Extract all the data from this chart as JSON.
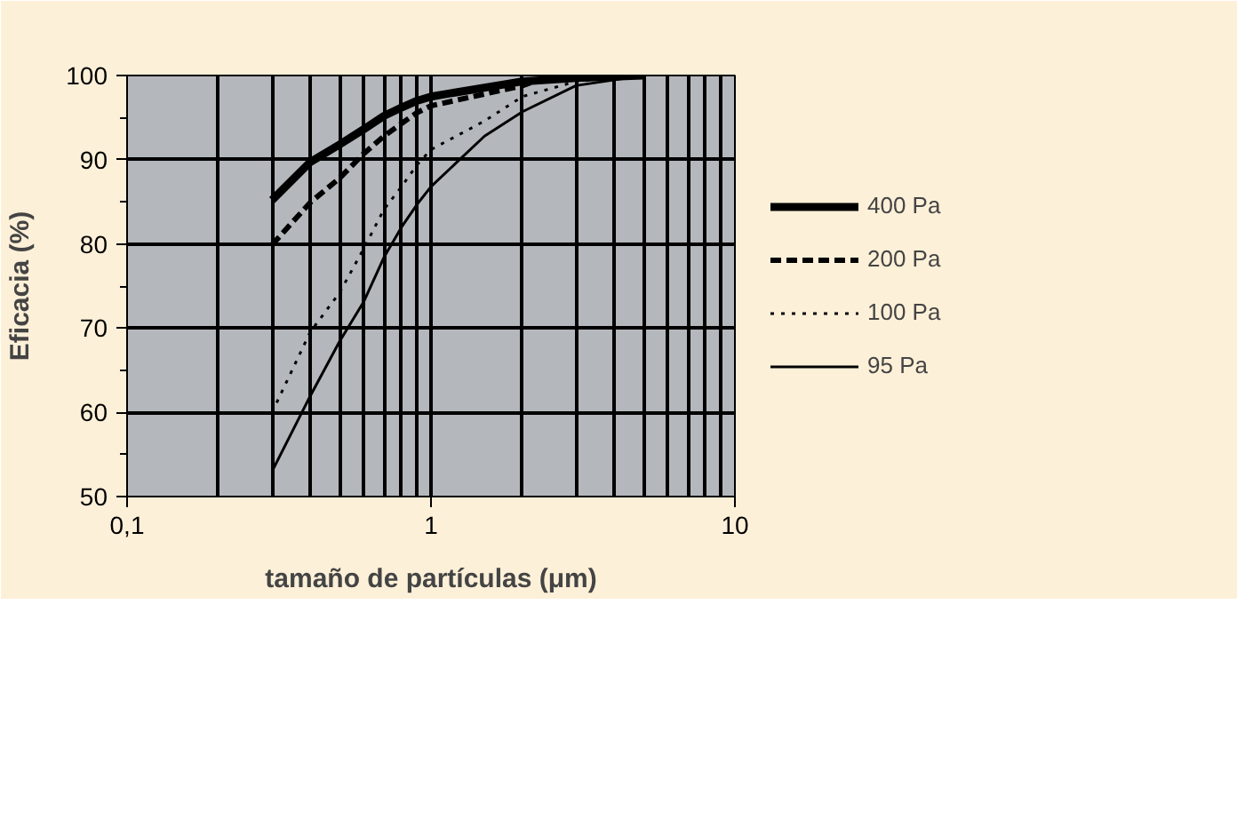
{
  "chart_data": {
    "type": "line",
    "xlabel": "tamaño de partículas (μm)",
    "ylabel": "Eficacia (%)",
    "log": "x",
    "xlim": [
      0.1,
      10
    ],
    "xticks": [
      {
        "value": 0.1,
        "label": "0,1"
      },
      1,
      10
    ],
    "ylim": [
      50,
      100
    ],
    "yticks": [
      50,
      60,
      70,
      80,
      90,
      100
    ],
    "grid": true,
    "legend": "right",
    "marker": "none",
    "series": [
      {
        "name": "400 Pa",
        "color": "#000000",
        "line_style": "solid",
        "x": [
          0.3,
          0.4,
          0.5,
          0.6,
          0.7,
          0.8,
          0.9,
          1,
          2,
          3,
          5
        ],
        "values": [
          85.2,
          89.7,
          91.8,
          93.6,
          95.2,
          96.2,
          97,
          97.5,
          99.3,
          99.7,
          100
        ]
      },
      {
        "name": "200 Pa",
        "color": "#000000",
        "line_style": "dashed",
        "x": [
          0.3,
          0.4,
          0.5,
          0.6,
          0.7,
          0.8,
          0.9,
          1,
          2,
          2.5
        ],
        "values": [
          79.9,
          84.9,
          87.8,
          90.7,
          92.8,
          94.3,
          95.6,
          96.4,
          98.8,
          100
        ]
      },
      {
        "name": "100 Pa",
        "color": "#000000",
        "line_style": "dotted",
        "x": [
          0.3,
          0.4,
          0.5,
          0.6,
          0.7,
          0.8,
          0.9,
          1,
          1.5,
          2,
          3,
          5
        ],
        "values": [
          60,
          69.5,
          74.2,
          79.4,
          84.1,
          86.8,
          89.4,
          91.2,
          94.6,
          97.5,
          99.3,
          100
        ]
      },
      {
        "name": "95 Pa",
        "color": "#000000",
        "line_style": "solid",
        "x": [
          0.3,
          0.4,
          0.5,
          0.6,
          0.7,
          0.8,
          0.9,
          1,
          1.5,
          2,
          3,
          5
        ],
        "values": [
          53,
          61.9,
          68.4,
          73.1,
          78.4,
          82,
          84.7,
          86.8,
          92.8,
          95.7,
          98.8,
          100
        ]
      }
    ]
  }
}
